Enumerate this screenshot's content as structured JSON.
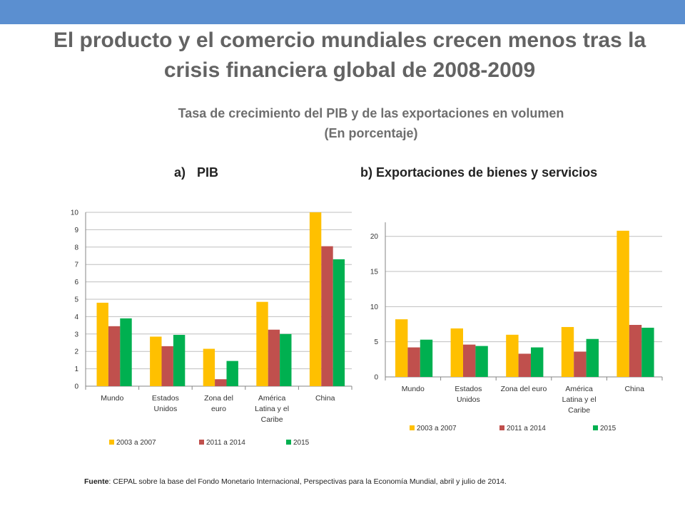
{
  "header": {
    "title_line1": "El producto y el comercio mundiales crecen menos tras la",
    "title_line2": "crisis financiera global de 2008-2009",
    "subtitle_line1": "Tasa de crecimiento del PIB y de las exportaciones en volumen",
    "subtitle_line2": "(En porcentaje)"
  },
  "panels": {
    "a_label": "a)",
    "a_title": "PIB",
    "b_title": "b) Exportaciones de bienes y servicios"
  },
  "footer": {
    "source_label": "Fuente",
    "source_text": ": CEPAL sobre la base del Fondo Monetario Internacional, Perspectivas para la Economía Mundial, abril y julio de 2014."
  },
  "colors": {
    "s1": "#ffc000",
    "s2": "#c0504d",
    "s3": "#00b050",
    "axis": "#868686",
    "grid": "#bfbfbf",
    "topbar": "#5b8fd0"
  },
  "chart_data": [
    {
      "type": "bar",
      "id": "pib",
      "categories": [
        [
          "Mundo"
        ],
        [
          "Estados",
          "Unidos"
        ],
        [
          "Zona del",
          "euro"
        ],
        [
          "América",
          "Latina y el",
          "Caribe"
        ],
        [
          "China"
        ]
      ],
      "series": [
        {
          "name": "2003 a 2007",
          "values": [
            4.8,
            2.85,
            2.15,
            4.85,
            10.0
          ]
        },
        {
          "name": "2011 a 2014",
          "values": [
            3.45,
            2.3,
            0.4,
            3.25,
            8.05
          ]
        },
        {
          "name": "2015",
          "values": [
            3.9,
            2.95,
            1.45,
            3.0,
            7.3
          ]
        }
      ],
      "ylim": [
        0,
        10
      ],
      "yticks": [
        "0",
        "1",
        "2",
        "3",
        "4",
        "5",
        "6",
        "7",
        "8",
        "9",
        "10"
      ],
      "grid": true,
      "legend": "bottom"
    },
    {
      "type": "bar",
      "id": "exportaciones",
      "categories": [
        [
          "Mundo"
        ],
        [
          "Estados",
          "Unidos"
        ],
        [
          "Zona del euro"
        ],
        [
          "América",
          "Latina y el",
          "Caribe"
        ],
        [
          "China"
        ]
      ],
      "series": [
        {
          "name": "2003 a 2007",
          "values": [
            8.2,
            6.9,
            6.0,
            7.1,
            20.8
          ]
        },
        {
          "name": "2011 a 2014",
          "values": [
            4.2,
            4.6,
            3.3,
            3.6,
            7.4
          ]
        },
        {
          "name": "2015",
          "values": [
            5.3,
            4.4,
            4.2,
            5.4,
            7.0
          ]
        }
      ],
      "ylim": [
        0,
        22
      ],
      "yticks": [
        "0",
        "5",
        "10",
        "15",
        "20"
      ],
      "grid": true,
      "legend": "bottom"
    }
  ]
}
